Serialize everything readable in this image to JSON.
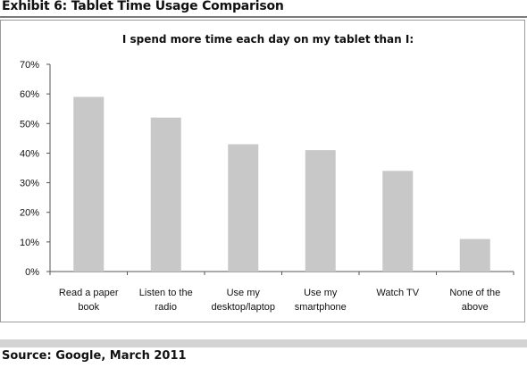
{
  "exhibit_title": "Exhibit 6: Tablet Time Usage Comparison",
  "source": "Source: Google, March 2011",
  "colors": {
    "bar": "#c8c8c8",
    "axis": "#555555",
    "frame": "#9a9a9a",
    "rule": "#7a7a7a"
  },
  "chart_data": {
    "type": "bar",
    "title": "I spend more time each day on my tablet than I:",
    "categories": [
      [
        "Read a paper",
        "book"
      ],
      [
        "Listen to the",
        "radio"
      ],
      [
        "Use my",
        "desktop/laptop"
      ],
      [
        "Use my",
        "smartphone"
      ],
      [
        "Watch TV"
      ],
      [
        "None of the",
        "above"
      ]
    ],
    "values": [
      59,
      52,
      43,
      41,
      34,
      11
    ],
    "value_unit": "%",
    "ylim": [
      0,
      70
    ],
    "yticks": [
      0,
      10,
      20,
      30,
      40,
      50,
      60,
      70
    ],
    "ytick_labels": [
      "0%",
      "10%",
      "20%",
      "30%",
      "40%",
      "50%",
      "60%",
      "70%"
    ],
    "xlabel": "",
    "ylabel": "",
    "grid": false,
    "legend": false
  }
}
